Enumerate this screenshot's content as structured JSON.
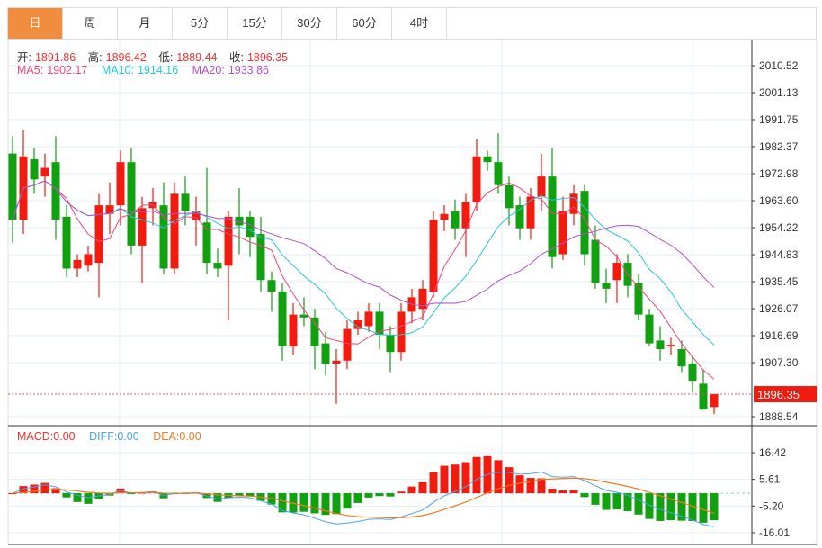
{
  "tabs": [
    {
      "label": "日",
      "active": true
    },
    {
      "label": "周"
    },
    {
      "label": "月"
    },
    {
      "label": "5分"
    },
    {
      "label": "15分"
    },
    {
      "label": "30分"
    },
    {
      "label": "60分"
    },
    {
      "label": "4时"
    }
  ],
  "ohlc": {
    "open_label": "开:",
    "open": "1891.86",
    "high_label": "高:",
    "high": "1896.42",
    "low_label": "低:",
    "low": "1889.44",
    "close_label": "收:",
    "close": "1896.35"
  },
  "ma": {
    "ma5_label": "MA5:",
    "ma5": "1902.17",
    "ma10_label": "MA10:",
    "ma10": "1914.16",
    "ma20_label": "MA20:",
    "ma20": "1933.86"
  },
  "macd": {
    "macd_label": "MACD:",
    "macd": "0.00",
    "diff_label": "DIFF:",
    "diff": "0.00",
    "dea_label": "DEA:",
    "dea": "0.00"
  },
  "colors": {
    "up": "#f21b0f",
    "down": "#10a010",
    "ma5": "#f0457a",
    "ma10": "#2cc5d8",
    "ma20": "#b050c8",
    "diff": "#4aa3ee",
    "dea": "#f47a1f",
    "tab_active": "#f28d3f"
  },
  "price_axis": [
    "2010.52",
    "2001.13",
    "1991.75",
    "1982.37",
    "1972.98",
    "1963.60",
    "1954.22",
    "1944.83",
    "1935.45",
    "1926.07",
    "1916.69",
    "1907.30",
    "1888.54"
  ],
  "current_price": "1896.35",
  "macd_axis": [
    "16.42",
    "5.61",
    "-5.20",
    "-16.01"
  ],
  "chart_data": {
    "type": "candlestick",
    "price_range": [
      1888.54,
      2010.52
    ],
    "macd_range": [
      -16.01,
      16.42
    ],
    "candles": [
      [
        1980,
        1957,
        1986,
        1949
      ],
      [
        1957,
        1979,
        1988,
        1952
      ],
      [
        1978,
        1971,
        1982,
        1966
      ],
      [
        1972,
        1975,
        1980,
        1965
      ],
      [
        1977,
        1957,
        1986,
        1950
      ],
      [
        1958,
        1940,
        1962,
        1937
      ],
      [
        1940,
        1943,
        1945,
        1937
      ],
      [
        1941,
        1945,
        1948,
        1939
      ],
      [
        1942,
        1962,
        1966,
        1930
      ],
      [
        1959,
        1962,
        1970,
        1952
      ],
      [
        1962,
        1977,
        1981,
        1955
      ],
      [
        1977,
        1948,
        1982,
        1945
      ],
      [
        1948,
        1961,
        1965,
        1935
      ],
      [
        1961,
        1963,
        1968,
        1955
      ],
      [
        1962,
        1940,
        1970,
        1938
      ],
      [
        1940,
        1966,
        1970,
        1938
      ],
      [
        1966,
        1960,
        1972,
        1955
      ],
      [
        1957,
        1960,
        1965,
        1948
      ],
      [
        1956,
        1942,
        1975,
        1938
      ],
      [
        1942,
        1940,
        1947,
        1937
      ],
      [
        1941,
        1958,
        1960,
        1922
      ],
      [
        1958,
        1955,
        1968,
        1945
      ],
      [
        1958,
        1951,
        1960,
        1944
      ],
      [
        1952,
        1936,
        1958,
        1932
      ],
      [
        1936,
        1932,
        1939,
        1925
      ],
      [
        1932,
        1913,
        1935,
        1908
      ],
      [
        1913,
        1924,
        1928,
        1910
      ],
      [
        1924,
        1923,
        1930,
        1920
      ],
      [
        1923,
        1913,
        1926,
        1905
      ],
      [
        1914,
        1907,
        1918,
        1903
      ],
      [
        1907,
        1908,
        1912,
        1893
      ],
      [
        1908,
        1919,
        1922,
        1905
      ],
      [
        1919,
        1922,
        1925,
        1917
      ],
      [
        1920,
        1925,
        1928,
        1918
      ],
      [
        1925,
        1917,
        1928,
        1912
      ],
      [
        1917,
        1911,
        1920,
        1904
      ],
      [
        1911,
        1925,
        1928,
        1908
      ],
      [
        1925,
        1930,
        1933,
        1921
      ],
      [
        1926,
        1933,
        1936,
        1922
      ],
      [
        1932,
        1957,
        1960,
        1930
      ],
      [
        1957,
        1959,
        1962,
        1953
      ],
      [
        1960,
        1954,
        1964,
        1950
      ],
      [
        1954,
        1963,
        1966,
        1944
      ],
      [
        1963,
        1979,
        1985,
        1960
      ],
      [
        1979,
        1977,
        1981,
        1974
      ],
      [
        1977,
        1969,
        1987,
        1966
      ],
      [
        1969,
        1961,
        1972,
        1955
      ],
      [
        1962,
        1954,
        1965,
        1950
      ],
      [
        1954,
        1965,
        1968,
        1950
      ],
      [
        1965,
        1972,
        1980,
        1960
      ],
      [
        1972,
        1944,
        1982,
        1940
      ],
      [
        1945,
        1960,
        1965,
        1943
      ],
      [
        1959,
        1966,
        1969,
        1955
      ],
      [
        1967,
        1945,
        1969,
        1941
      ],
      [
        1950,
        1935,
        1955,
        1933
      ],
      [
        1935,
        1933,
        1940,
        1928
      ],
      [
        1936,
        1942,
        1945,
        1928
      ],
      [
        1942,
        1934,
        1945,
        1930
      ],
      [
        1935,
        1924,
        1938,
        1922
      ],
      [
        1924,
        1914,
        1926,
        1913
      ],
      [
        1915,
        1912,
        1920,
        1908
      ],
      [
        1913,
        1913.5,
        1916,
        1910
      ],
      [
        1912,
        1906,
        1915,
        1904
      ],
      [
        1907,
        1901,
        1910,
        1897
      ],
      [
        1900,
        1891,
        1905,
        1891
      ],
      [
        1891.86,
        1896.35,
        1896.42,
        1889.44
      ]
    ]
  }
}
